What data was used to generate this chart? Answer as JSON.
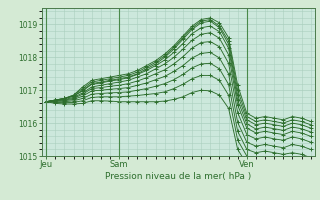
{
  "title": "Pression niveau de la mer( hPa )",
  "bg_color": "#d4ead4",
  "plot_bg_color": "#cce8dc",
  "grid_color": "#aacfbe",
  "line_color": "#2d6e2d",
  "vline_color": "#4a8a4a",
  "spine_color": "#4a7a4a",
  "ylim": [
    1015,
    1019.5
  ],
  "yticks": [
    1015,
    1016,
    1017,
    1018,
    1019
  ],
  "xtick_labels": [
    "Jeu",
    "Sam",
    "Ven"
  ],
  "xtick_positions": [
    0,
    8,
    22
  ],
  "total_points": 30,
  "series": [
    [
      1016.65,
      1016.7,
      1016.75,
      1016.85,
      1017.1,
      1017.3,
      1017.35,
      1017.4,
      1017.45,
      1017.5,
      1017.6,
      1017.75,
      1017.9,
      1018.1,
      1018.35,
      1018.65,
      1018.95,
      1019.15,
      1019.2,
      1019.05,
      1018.6,
      1017.15,
      1016.3,
      1016.15,
      1016.2,
      1016.15,
      1016.1,
      1016.2,
      1016.15,
      1016.05
    ],
    [
      1016.65,
      1016.7,
      1016.75,
      1016.85,
      1017.05,
      1017.25,
      1017.3,
      1017.35,
      1017.4,
      1017.45,
      1017.55,
      1017.7,
      1017.85,
      1018.05,
      1018.3,
      1018.6,
      1018.9,
      1019.1,
      1019.15,
      1018.95,
      1018.5,
      1017.0,
      1016.2,
      1016.05,
      1016.1,
      1016.05,
      1016.0,
      1016.1,
      1016.05,
      1015.95
    ],
    [
      1016.65,
      1016.7,
      1016.75,
      1016.82,
      1017.0,
      1017.2,
      1017.25,
      1017.3,
      1017.35,
      1017.4,
      1017.5,
      1017.65,
      1017.8,
      1018.0,
      1018.25,
      1018.55,
      1018.85,
      1019.05,
      1019.1,
      1018.9,
      1018.4,
      1016.85,
      1016.1,
      1015.95,
      1016.0,
      1015.95,
      1015.9,
      1016.0,
      1015.95,
      1015.85
    ],
    [
      1016.65,
      1016.7,
      1016.75,
      1016.82,
      1016.98,
      1017.18,
      1017.22,
      1017.28,
      1017.32,
      1017.38,
      1017.48,
      1017.6,
      1017.75,
      1017.92,
      1018.15,
      1018.42,
      1018.72,
      1018.9,
      1018.95,
      1018.78,
      1018.28,
      1016.7,
      1015.98,
      1015.82,
      1015.88,
      1015.83,
      1015.78,
      1015.88,
      1015.83,
      1015.73
    ],
    [
      1016.65,
      1016.7,
      1016.72,
      1016.78,
      1016.92,
      1017.1,
      1017.15,
      1017.2,
      1017.25,
      1017.3,
      1017.4,
      1017.5,
      1017.65,
      1017.8,
      1018.0,
      1018.25,
      1018.52,
      1018.7,
      1018.75,
      1018.58,
      1018.08,
      1016.55,
      1015.85,
      1015.7,
      1015.75,
      1015.7,
      1015.65,
      1015.75,
      1015.7,
      1015.6
    ],
    [
      1016.65,
      1016.68,
      1016.7,
      1016.75,
      1016.88,
      1017.05,
      1017.08,
      1017.12,
      1017.15,
      1017.2,
      1017.28,
      1017.38,
      1017.5,
      1017.62,
      1017.8,
      1018.02,
      1018.28,
      1018.45,
      1018.48,
      1018.32,
      1017.82,
      1016.32,
      1015.65,
      1015.52,
      1015.58,
      1015.52,
      1015.48,
      1015.58,
      1015.52,
      1015.42
    ],
    [
      1016.65,
      1016.67,
      1016.68,
      1016.72,
      1016.82,
      1016.98,
      1017.0,
      1017.03,
      1017.05,
      1017.08,
      1017.15,
      1017.22,
      1017.32,
      1017.42,
      1017.57,
      1017.75,
      1017.98,
      1018.12,
      1018.15,
      1017.98,
      1017.5,
      1016.02,
      1015.42,
      1015.3,
      1015.35,
      1015.3,
      1015.25,
      1015.35,
      1015.3,
      1015.2
    ],
    [
      1016.65,
      1016.65,
      1016.65,
      1016.68,
      1016.75,
      1016.88,
      1016.9,
      1016.92,
      1016.93,
      1016.95,
      1017.0,
      1017.05,
      1017.12,
      1017.2,
      1017.32,
      1017.48,
      1017.68,
      1017.8,
      1017.82,
      1017.65,
      1017.18,
      1015.75,
      1015.2,
      1015.1,
      1015.15,
      1015.1,
      1015.05,
      1015.1,
      1015.05,
      1014.95
    ],
    [
      1016.65,
      1016.63,
      1016.62,
      1016.63,
      1016.68,
      1016.78,
      1016.8,
      1016.8,
      1016.8,
      1016.82,
      1016.84,
      1016.87,
      1016.9,
      1016.95,
      1017.05,
      1017.18,
      1017.35,
      1017.45,
      1017.45,
      1017.3,
      1016.85,
      1015.48,
      1015.0,
      1014.88,
      1014.92,
      1014.88,
      1014.83,
      1014.88,
      1014.83,
      1014.73
    ],
    [
      1016.65,
      1016.6,
      1016.58,
      1016.58,
      1016.6,
      1016.68,
      1016.68,
      1016.67,
      1016.65,
      1016.65,
      1016.65,
      1016.65,
      1016.65,
      1016.67,
      1016.72,
      1016.8,
      1016.93,
      1017.0,
      1016.98,
      1016.85,
      1016.45,
      1015.2,
      1014.75,
      1014.65,
      1014.68,
      1014.63,
      1014.6,
      1014.65,
      1014.6,
      1014.5
    ]
  ]
}
